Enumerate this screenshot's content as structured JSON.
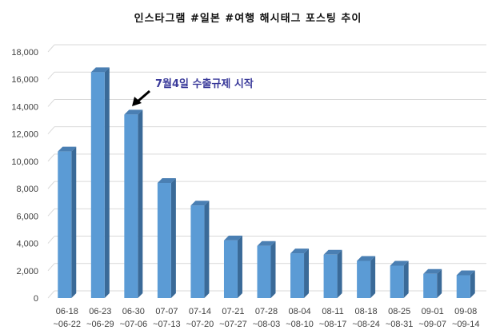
{
  "chart_data": {
    "type": "bar",
    "title": "인스타그램 #일본 #여행 해시태그 포스팅 추이",
    "xlabel": "",
    "ylabel": "",
    "ylim": [
      0,
      18000
    ],
    "yticks": [
      0,
      2000,
      4000,
      6000,
      8000,
      10000,
      12000,
      14000,
      16000,
      18000
    ],
    "ytick_labels": [
      "0",
      "2,000",
      "4,000",
      "6,000",
      "8,000",
      "10,000",
      "12,000",
      "14,000",
      "16,000",
      "18,000"
    ],
    "grid": true,
    "legend": null,
    "style": "3d-column",
    "bar_color": "#5b9bd5",
    "bar_side_color": "#3a6a98",
    "categories": [
      [
        "06-18",
        "~06-22"
      ],
      [
        "06-23",
        "~06-29"
      ],
      [
        "06-30",
        "~07-06"
      ],
      [
        "07-07",
        "~07-13"
      ],
      [
        "07-14",
        "~07-20"
      ],
      [
        "07-21",
        "~07-27"
      ],
      [
        "07-28",
        "~08-03"
      ],
      [
        "08-04",
        "~08-10"
      ],
      [
        "08-11",
        "~08-17"
      ],
      [
        "08-18",
        "~08-24"
      ],
      [
        "08-25",
        "~08-31"
      ],
      [
        "09-01",
        "~09-07"
      ],
      [
        "09-08",
        "~09-14"
      ]
    ],
    "values": [
      10600,
      16400,
      13300,
      8300,
      6650,
      4100,
      3700,
      3150,
      3050,
      2600,
      2250,
      1650,
      1550
    ],
    "annotations": [
      {
        "text": "7월4일 수출규제 시작",
        "points_to_category_index": 2,
        "arrow": true,
        "color": "#3a3a9a"
      }
    ]
  }
}
